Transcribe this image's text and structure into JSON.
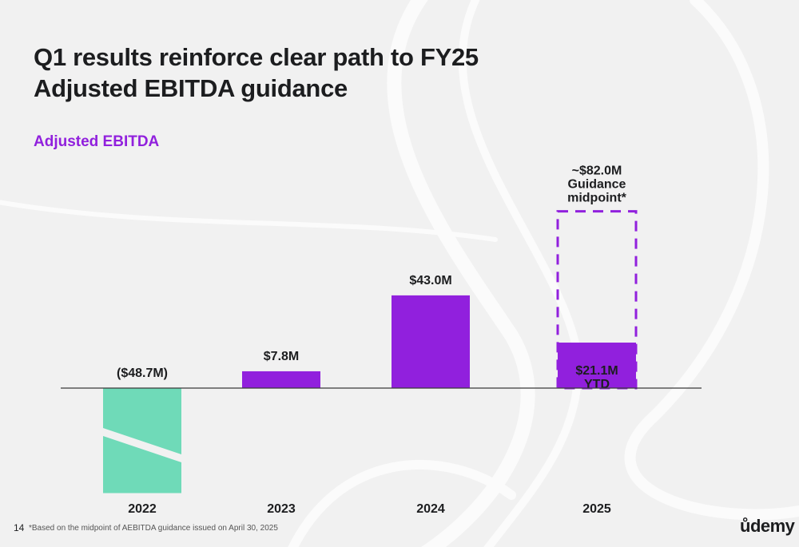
{
  "slide": {
    "title_line1": "Q1 results reinforce clear path to FY25",
    "title_line2": "Adjusted EBITDA guidance",
    "page_number": "14",
    "footnote": "*Based on the midpoint of AEBITDA guidance issued on April 30, 2025",
    "logo_text": "ůdemy"
  },
  "colors": {
    "purple": "#9120dd",
    "negative_red": "#e0101a",
    "teal": "#6fdab8",
    "background": "#f1f1f1"
  },
  "chart_data": {
    "type": "bar",
    "title": "Adjusted EBITDA",
    "categories": [
      "2022",
      "2023",
      "2024",
      "2025"
    ],
    "series": [
      {
        "values": [
          -48.7,
          7.8,
          43.0,
          21.1
        ],
        "labels": [
          "($48.7M)",
          "$7.8M",
          "$43.0M",
          "$21.1M"
        ]
      }
    ],
    "guidance": {
      "category": "2025",
      "value": 82.0,
      "label_lines": [
        "~$82.0M",
        "Guidance",
        "midpoint*"
      ],
      "style": "dashed-outline"
    },
    "annotations": [
      {
        "category": "2025",
        "text": "YTD"
      }
    ],
    "unit": "$M",
    "ylim": [
      -50,
      82
    ],
    "grid": false,
    "legend": "none"
  }
}
